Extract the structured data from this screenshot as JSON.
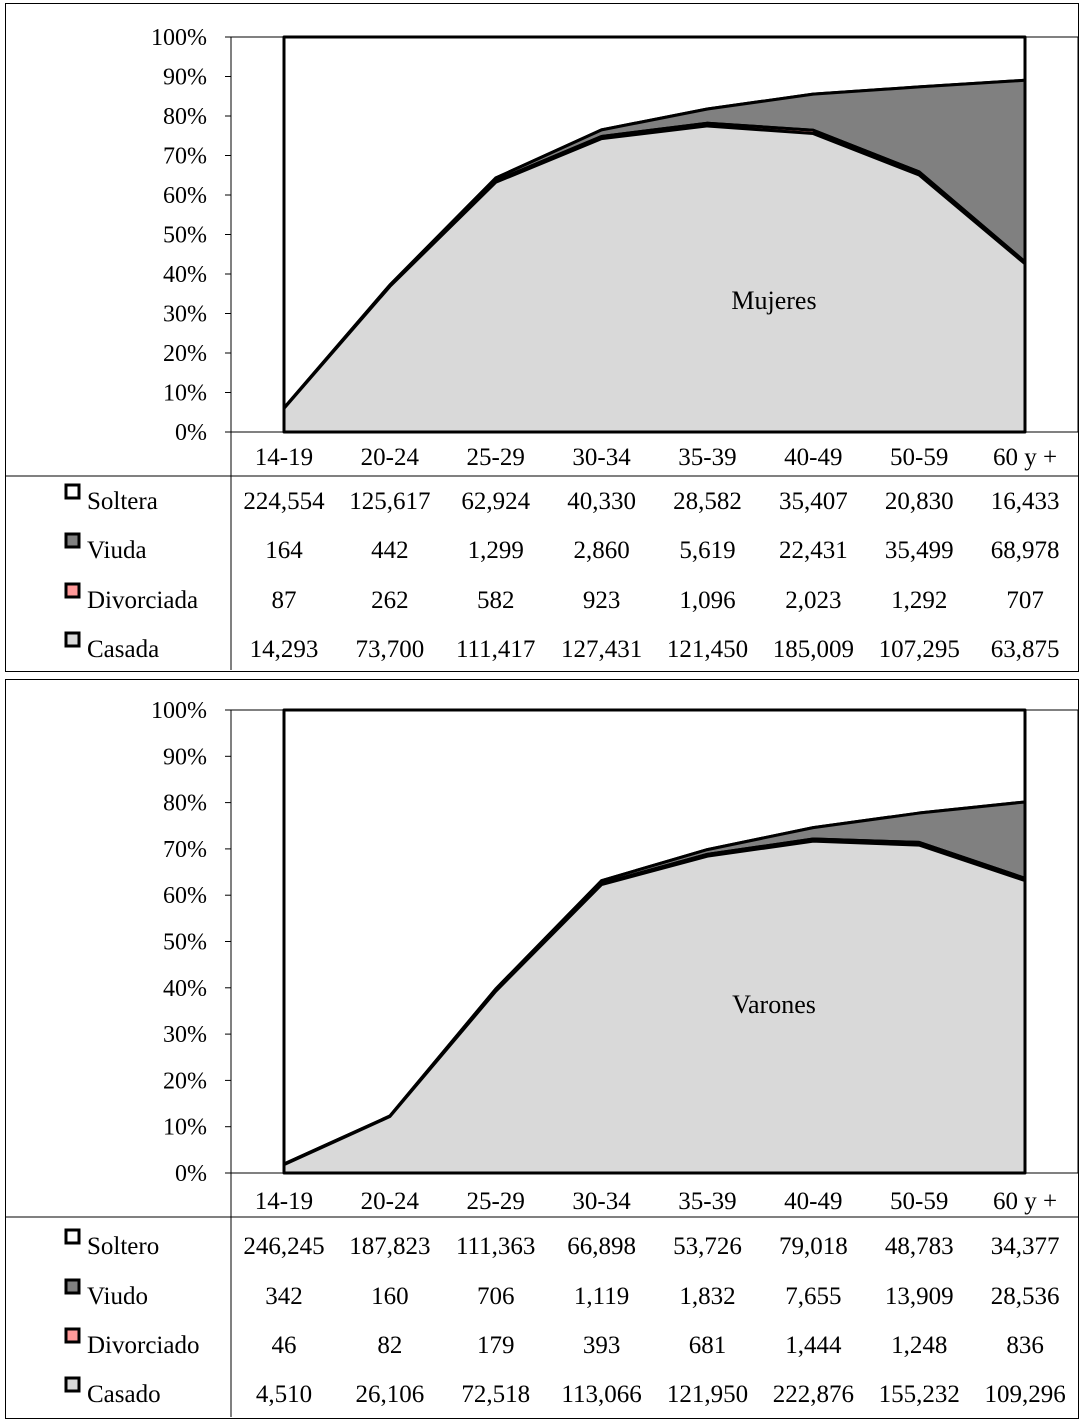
{
  "colors": {
    "soltero": "#ffffff",
    "viudo": "#808080",
    "divorciado": "#ff9999",
    "casado": "#d9d9d9",
    "line": "#000000"
  },
  "chart_data": [
    {
      "type": "area",
      "stacking": "percent",
      "title": "Mujeres",
      "categories": [
        "14-19",
        "20-24",
        "25-29",
        "30-34",
        "35-39",
        "40-49",
        "50-59",
        "60 y +"
      ],
      "y_ticks": [
        "0%",
        "10%",
        "20%",
        "30%",
        "40%",
        "50%",
        "60%",
        "70%",
        "80%",
        "90%",
        "100%"
      ],
      "ylim": [
        0,
        100
      ],
      "series": [
        {
          "name": "Soltera",
          "key": "soltero",
          "values": [
            "224,554",
            "125,617",
            "62,924",
            "40,330",
            "28,582",
            "35,407",
            "20,830",
            "16,433"
          ]
        },
        {
          "name": "Viuda",
          "key": "viudo",
          "values": [
            "164",
            "442",
            "1,299",
            "2,860",
            "5,619",
            "22,431",
            "35,499",
            "68,978"
          ]
        },
        {
          "name": "Divorciada",
          "key": "divorciado",
          "values": [
            "87",
            "262",
            "582",
            "923",
            "1,096",
            "2,023",
            "1,292",
            "707"
          ]
        },
        {
          "name": "Casada",
          "key": "casado",
          "values": [
            "14,293",
            "73,700",
            "111,417",
            "127,431",
            "121,450",
            "185,009",
            "107,295",
            "63,875"
          ]
        }
      ]
    },
    {
      "type": "area",
      "stacking": "percent",
      "title": "Varones",
      "categories": [
        "14-19",
        "20-24",
        "25-29",
        "30-34",
        "35-39",
        "40-49",
        "50-59",
        "60 y +"
      ],
      "y_ticks": [
        "0%",
        "10%",
        "20%",
        "30%",
        "40%",
        "50%",
        "60%",
        "70%",
        "80%",
        "90%",
        "100%"
      ],
      "ylim": [
        0,
        100
      ],
      "series": [
        {
          "name": "Soltero",
          "key": "soltero",
          "values": [
            "246,245",
            "187,823",
            "111,363",
            "66,898",
            "53,726",
            "79,018",
            "48,783",
            "34,377"
          ]
        },
        {
          "name": "Viudo",
          "key": "viudo",
          "values": [
            "342",
            "160",
            "706",
            "1,119",
            "1,832",
            "7,655",
            "13,909",
            "28,536"
          ]
        },
        {
          "name": "Divorciado",
          "key": "divorciado",
          "values": [
            "46",
            "82",
            "179",
            "393",
            "681",
            "1,444",
            "1,248",
            "836"
          ]
        },
        {
          "name": "Casado",
          "key": "casado",
          "values": [
            "4,510",
            "26,106",
            "72,518",
            "113,066",
            "121,950",
            "222,876",
            "155,232",
            "109,296"
          ]
        }
      ]
    }
  ]
}
